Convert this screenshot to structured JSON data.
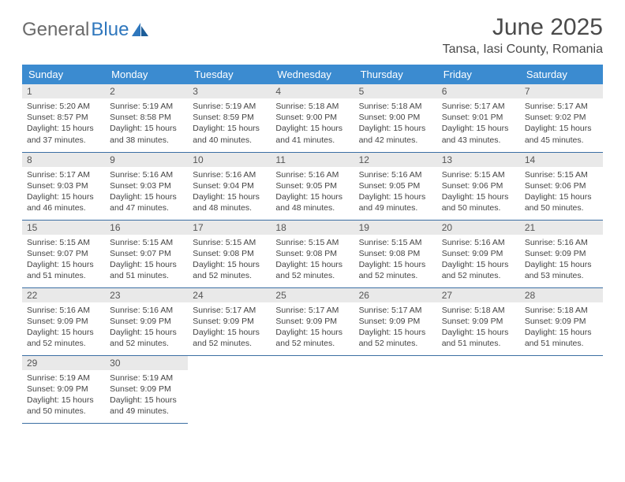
{
  "brand": {
    "word1": "General",
    "word2": "Blue"
  },
  "title": "June 2025",
  "location": "Tansa, Iasi County, Romania",
  "colors": {
    "header_bg": "#3b8bd0",
    "header_fg": "#ffffff",
    "daynum_bg": "#e9e9e9",
    "row_border": "#3b6fa3",
    "text": "#444444",
    "brand_grey": "#6b6b6b",
    "brand_blue": "#2f77bd",
    "page_bg": "#ffffff"
  },
  "weekdays": [
    "Sunday",
    "Monday",
    "Tuesday",
    "Wednesday",
    "Thursday",
    "Friday",
    "Saturday"
  ],
  "weeks": [
    [
      {
        "n": "1",
        "sr": "5:20 AM",
        "ss": "8:57 PM",
        "dl": "15 hours and 37 minutes."
      },
      {
        "n": "2",
        "sr": "5:19 AM",
        "ss": "8:58 PM",
        "dl": "15 hours and 38 minutes."
      },
      {
        "n": "3",
        "sr": "5:19 AM",
        "ss": "8:59 PM",
        "dl": "15 hours and 40 minutes."
      },
      {
        "n": "4",
        "sr": "5:18 AM",
        "ss": "9:00 PM",
        "dl": "15 hours and 41 minutes."
      },
      {
        "n": "5",
        "sr": "5:18 AM",
        "ss": "9:00 PM",
        "dl": "15 hours and 42 minutes."
      },
      {
        "n": "6",
        "sr": "5:17 AM",
        "ss": "9:01 PM",
        "dl": "15 hours and 43 minutes."
      },
      {
        "n": "7",
        "sr": "5:17 AM",
        "ss": "9:02 PM",
        "dl": "15 hours and 45 minutes."
      }
    ],
    [
      {
        "n": "8",
        "sr": "5:17 AM",
        "ss": "9:03 PM",
        "dl": "15 hours and 46 minutes."
      },
      {
        "n": "9",
        "sr": "5:16 AM",
        "ss": "9:03 PM",
        "dl": "15 hours and 47 minutes."
      },
      {
        "n": "10",
        "sr": "5:16 AM",
        "ss": "9:04 PM",
        "dl": "15 hours and 48 minutes."
      },
      {
        "n": "11",
        "sr": "5:16 AM",
        "ss": "9:05 PM",
        "dl": "15 hours and 48 minutes."
      },
      {
        "n": "12",
        "sr": "5:16 AM",
        "ss": "9:05 PM",
        "dl": "15 hours and 49 minutes."
      },
      {
        "n": "13",
        "sr": "5:15 AM",
        "ss": "9:06 PM",
        "dl": "15 hours and 50 minutes."
      },
      {
        "n": "14",
        "sr": "5:15 AM",
        "ss": "9:06 PM",
        "dl": "15 hours and 50 minutes."
      }
    ],
    [
      {
        "n": "15",
        "sr": "5:15 AM",
        "ss": "9:07 PM",
        "dl": "15 hours and 51 minutes."
      },
      {
        "n": "16",
        "sr": "5:15 AM",
        "ss": "9:07 PM",
        "dl": "15 hours and 51 minutes."
      },
      {
        "n": "17",
        "sr": "5:15 AM",
        "ss": "9:08 PM",
        "dl": "15 hours and 52 minutes."
      },
      {
        "n": "18",
        "sr": "5:15 AM",
        "ss": "9:08 PM",
        "dl": "15 hours and 52 minutes."
      },
      {
        "n": "19",
        "sr": "5:15 AM",
        "ss": "9:08 PM",
        "dl": "15 hours and 52 minutes."
      },
      {
        "n": "20",
        "sr": "5:16 AM",
        "ss": "9:09 PM",
        "dl": "15 hours and 52 minutes."
      },
      {
        "n": "21",
        "sr": "5:16 AM",
        "ss": "9:09 PM",
        "dl": "15 hours and 53 minutes."
      }
    ],
    [
      {
        "n": "22",
        "sr": "5:16 AM",
        "ss": "9:09 PM",
        "dl": "15 hours and 52 minutes."
      },
      {
        "n": "23",
        "sr": "5:16 AM",
        "ss": "9:09 PM",
        "dl": "15 hours and 52 minutes."
      },
      {
        "n": "24",
        "sr": "5:17 AM",
        "ss": "9:09 PM",
        "dl": "15 hours and 52 minutes."
      },
      {
        "n": "25",
        "sr": "5:17 AM",
        "ss": "9:09 PM",
        "dl": "15 hours and 52 minutes."
      },
      {
        "n": "26",
        "sr": "5:17 AM",
        "ss": "9:09 PM",
        "dl": "15 hours and 52 minutes."
      },
      {
        "n": "27",
        "sr": "5:18 AM",
        "ss": "9:09 PM",
        "dl": "15 hours and 51 minutes."
      },
      {
        "n": "28",
        "sr": "5:18 AM",
        "ss": "9:09 PM",
        "dl": "15 hours and 51 minutes."
      }
    ],
    [
      {
        "n": "29",
        "sr": "5:19 AM",
        "ss": "9:09 PM",
        "dl": "15 hours and 50 minutes."
      },
      {
        "n": "30",
        "sr": "5:19 AM",
        "ss": "9:09 PM",
        "dl": "15 hours and 49 minutes."
      },
      null,
      null,
      null,
      null,
      null
    ]
  ],
  "labels": {
    "sunrise": "Sunrise:",
    "sunset": "Sunset:",
    "daylight": "Daylight:"
  }
}
